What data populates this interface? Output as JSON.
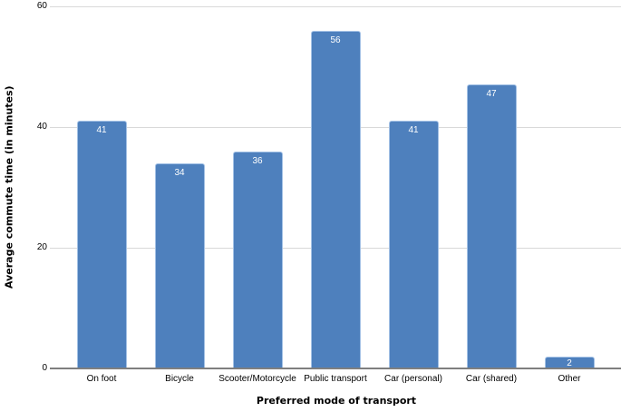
{
  "chart_data": {
    "type": "bar",
    "title": "",
    "xlabel": "Preferred mode of transport",
    "ylabel": "Average commute time (in minutes)",
    "categories": [
      "On foot",
      "Bicycle",
      "Scooter/Motorcycle",
      "Public transport",
      "Car (personal)",
      "Car (shared)",
      "Other"
    ],
    "values": [
      41,
      34,
      36,
      56,
      41,
      47,
      2
    ],
    "ylim": [
      0,
      60
    ],
    "yticks": [
      0,
      20,
      40,
      60
    ],
    "grid": "horizontal",
    "legend": "none",
    "value_labels": "inside-top",
    "colors": {
      "bar_fill": "#4e80bd",
      "bar_border": "#a3c1e5",
      "value_label_text": "#ffffff",
      "gridline": "#d9d9d9",
      "axis_line": "#7f7f7f",
      "text": "#000000"
    }
  }
}
